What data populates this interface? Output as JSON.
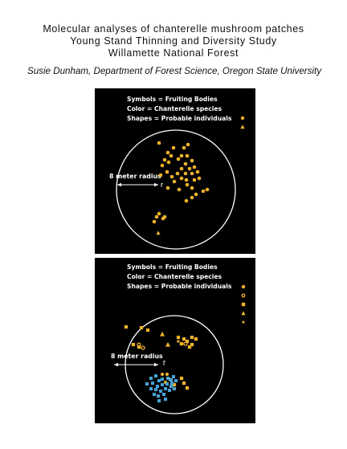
{
  "header": {
    "title_line1": "Molecular analyses of chanterelle mushroom patches",
    "title_line2": "Young Stand Thinning and Diversity Study",
    "title_line3": "Willamette National Forest",
    "author": "Susie Dunham, Department of Forest Science, Oregon State University"
  },
  "colors": {
    "background": "#000000",
    "circle": "#ffffff",
    "species_yellow": "#f2b313",
    "species_blue": "#3ba7df"
  },
  "panels": [
    {
      "legend": {
        "line1": "Symbols = Fruiting Bodies",
        "line2": "Color = Chanterelle species",
        "line3": "Shapes = Probable individuals"
      },
      "legend_symbols": [
        {
          "shape": "circle",
          "color": "#f2b313"
        },
        {
          "shape": "triangle",
          "color": "#f2b313"
        }
      ],
      "radius_label": "8 meter radius"
    },
    {
      "legend": {
        "line1": "Symbols = Fruiting Bodies",
        "line2": "Color = Chanterelle species",
        "line3": "Shapes = Probable individuals"
      },
      "legend_symbols": [
        {
          "shape": "circle",
          "color": "#f2b313"
        },
        {
          "shape": "ring",
          "color": "#f2b313"
        },
        {
          "shape": "square",
          "color": "#f2b313"
        },
        {
          "shape": "triangle",
          "color": "#f2b313"
        },
        {
          "shape": "star",
          "color": "#f2b313"
        }
      ],
      "radius_label": "8 meter radius"
    }
  ]
}
